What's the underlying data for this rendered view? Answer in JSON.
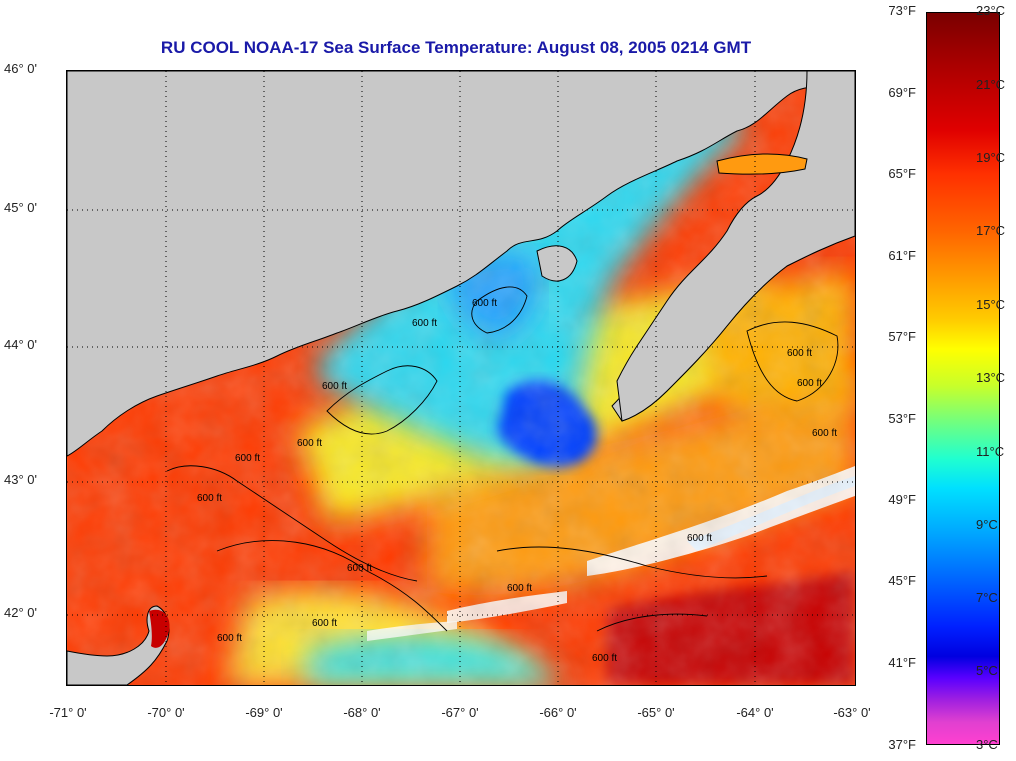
{
  "title": "RU COOL  NOAA-17  Sea Surface Temperature:  August 08, 2005 0214 GMT",
  "map": {
    "latitude_labels": [
      "46° 0'",
      "45° 0'",
      "44° 0'",
      "43° 0'",
      "42° 0'"
    ],
    "longitude_labels": [
      "-71° 0'",
      "-70° 0'",
      "-69° 0'",
      "-68° 0'",
      "-67° 0'",
      "-66° 0'",
      "-65° 0'",
      "-64° 0'",
      "-63° 0'"
    ],
    "contour_label": "600 ft",
    "colors": {
      "land": "#c8c8c8",
      "cloud": "#ffffff",
      "warm": "#ff3000",
      "cold": "#0050ff"
    }
  },
  "colorbar": {
    "fahrenheit_labels": [
      "73°F",
      "69°F",
      "65°F",
      "61°F",
      "57°F",
      "53°F",
      "49°F",
      "45°F",
      "41°F",
      "37°F"
    ],
    "celsius_labels": [
      "23°C",
      "21°C",
      "19°C",
      "17°C",
      "15°C",
      "13°C",
      "11°C",
      "9°C",
      "7°C",
      "5°C",
      "3°C"
    ]
  }
}
